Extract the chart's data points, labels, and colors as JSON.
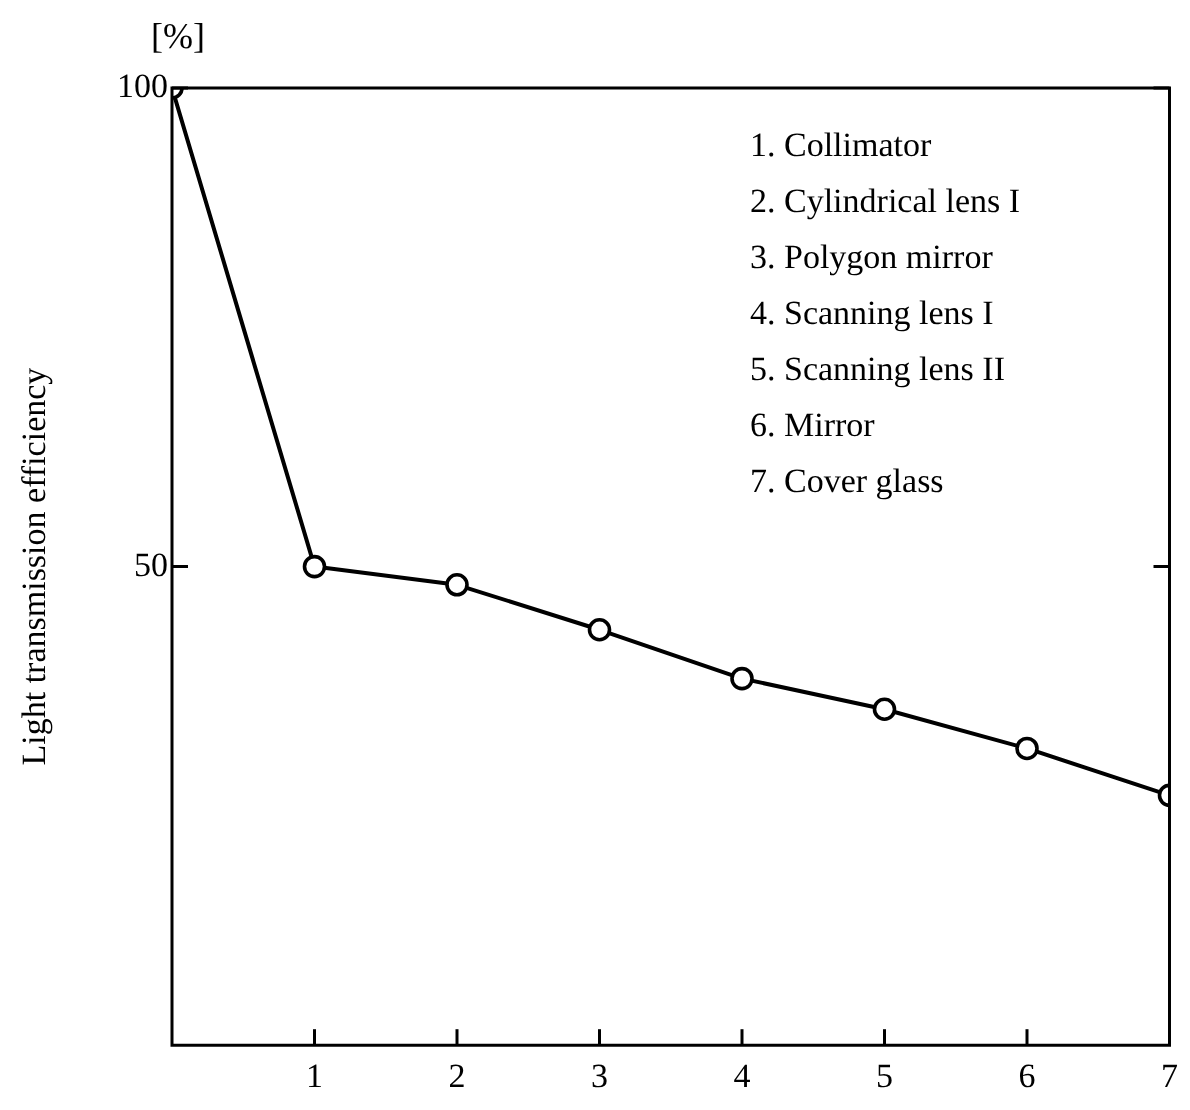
{
  "chart_data": {
    "type": "line",
    "ylabel": "Light transmission efficiency",
    "annotations": [
      "[%]",
      "1. Collimator",
      "2. Cylindrical lens I",
      "3. Polygon mirror",
      "4. Scanning lens I",
      "5. Scanning lens II",
      "6. Mirror",
      "7. Cover glass"
    ],
    "x": [
      0,
      1,
      2,
      3,
      4,
      5,
      6,
      7
    ],
    "series": [
      {
        "color": "#000000",
        "values": [
          100,
          50,
          48.1,
          43.4,
          38.3,
          35.1,
          31.0,
          26.1
        ]
      }
    ],
    "xlim": [
      0,
      7
    ],
    "xticks": [
      1,
      2,
      3,
      4,
      5,
      6,
      7
    ],
    "ylim": [
      0,
      100
    ],
    "yticks": [
      50,
      100
    ],
    "grid": false,
    "legend": false,
    "marker": "circle",
    "line_style": "solid"
  }
}
